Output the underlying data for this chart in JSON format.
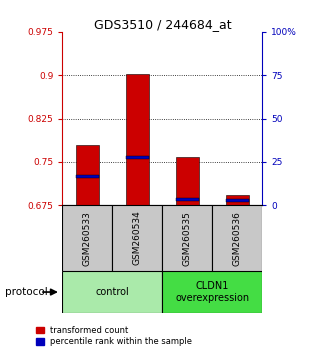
{
  "title": "GDS3510 / 244684_at",
  "samples": [
    "GSM260533",
    "GSM260534",
    "GSM260535",
    "GSM260536"
  ],
  "red_values": [
    0.78,
    0.902,
    0.758,
    0.693
  ],
  "blue_values": [
    0.725,
    0.758,
    0.685,
    0.683
  ],
  "red_base": 0.675,
  "ylim_left": [
    0.675,
    0.975
  ],
  "yticks_left": [
    0.675,
    0.75,
    0.825,
    0.9,
    0.975
  ],
  "ytick_labels_left": [
    "0.675",
    "0.75",
    "0.825",
    "0.9",
    "0.975"
  ],
  "yticks_right": [
    0,
    25,
    50,
    75,
    100
  ],
  "ytick_labels_right": [
    "0",
    "25",
    "50",
    "75",
    "100%"
  ],
  "grid_lines": [
    0.75,
    0.825,
    0.9
  ],
  "groups": [
    {
      "label": "control",
      "cols": [
        0,
        1
      ],
      "color": "#AAEAAA"
    },
    {
      "label": "CLDN1\noverexpression",
      "cols": [
        2,
        3
      ],
      "color": "#44DD44"
    }
  ],
  "protocol_label": "protocol",
  "legend_red": "transformed count",
  "legend_blue": "percentile rank within the sample",
  "bar_width": 0.45,
  "red_color": "#CC0000",
  "blue_color": "#0000BB",
  "left_axis_color": "#CC0000",
  "right_axis_color": "#0000BB",
  "sample_box_color": "#C8C8C8",
  "title_fontsize": 9
}
